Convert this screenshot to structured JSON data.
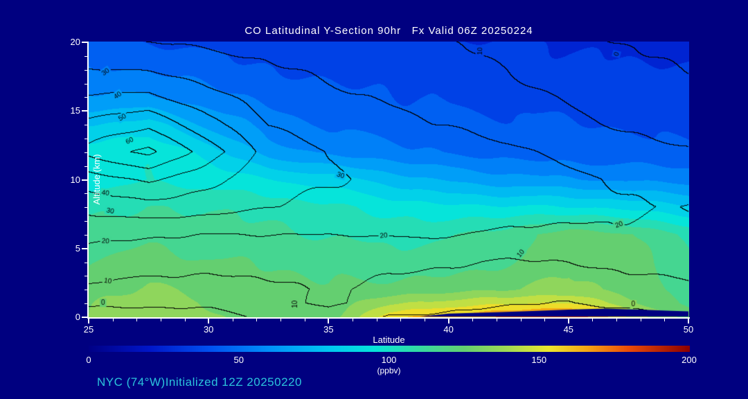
{
  "annotation": {
    "text": "NYC (74°W)Initialized 12Z 20250220"
  },
  "colors": {
    "background": "#000080",
    "axis": "#ffffff",
    "title_text": "#ffffff",
    "annotation_text": "#2bc4dc",
    "contour_line": "#000000"
  },
  "chart_data": {
    "type": "heatmap",
    "title": "CO Latitudinal Y-Section 90hr   Fx Valid 06Z 20250224",
    "xlabel": "Latitude",
    "ylabel": "Altitude (km)",
    "x_range": [
      25,
      50
    ],
    "y_range": [
      0,
      20
    ],
    "x_ticks": [
      25,
      30,
      35,
      40,
      45,
      50
    ],
    "y_ticks": [
      0,
      5,
      10,
      15,
      20
    ],
    "x_minor_step": 1,
    "y_minor_step": 1,
    "colorbar": {
      "min": 0,
      "max": 200,
      "ticks": [
        0,
        50,
        100,
        150,
        200
      ],
      "label": "(ppbv)"
    },
    "fill_step": 10,
    "colormap": [
      {
        "v": 0.0,
        "c": "#000086"
      },
      {
        "v": 0.1,
        "c": "#0016c8"
      },
      {
        "v": 0.2,
        "c": "#0050f0"
      },
      {
        "v": 0.3,
        "c": "#0090fa"
      },
      {
        "v": 0.4,
        "c": "#00c8f0"
      },
      {
        "v": 0.475,
        "c": "#06e4da"
      },
      {
        "v": 0.55,
        "c": "#35d9a2"
      },
      {
        "v": 0.625,
        "c": "#64cf70"
      },
      {
        "v": 0.7,
        "c": "#a4da52"
      },
      {
        "v": 0.765,
        "c": "#ece72e"
      },
      {
        "v": 0.83,
        "c": "#f5a514"
      },
      {
        "v": 0.9,
        "c": "#ea4a08"
      },
      {
        "v": 1.0,
        "c": "#8c0000"
      }
    ],
    "grid_lats": [
      25,
      27.5,
      30,
      32.5,
      35,
      37.5,
      40,
      42.5,
      45,
      47.5,
      50
    ],
    "grid_alts": [
      20,
      18,
      16,
      14,
      12,
      10,
      8,
      6,
      4,
      2,
      1,
      0
    ],
    "fill_values_ppbv": [
      [
        42,
        40,
        37,
        35,
        33,
        32,
        31,
        30,
        30,
        28,
        26
      ],
      [
        50,
        48,
        45,
        41,
        38,
        36,
        35,
        34,
        33,
        32,
        30
      ],
      [
        62,
        60,
        54,
        47,
        43,
        40,
        38,
        38,
        37,
        35,
        33
      ],
      [
        80,
        84,
        68,
        55,
        48,
        45,
        43,
        42,
        40,
        38,
        36
      ],
      [
        94,
        98,
        86,
        66,
        57,
        52,
        48,
        46,
        45,
        43,
        41
      ],
      [
        95,
        99,
        96,
        90,
        85,
        76,
        68,
        64,
        61,
        58,
        55
      ],
      [
        108,
        111,
        109,
        105,
        101,
        97,
        93,
        91,
        89,
        87,
        82
      ],
      [
        115,
        116,
        114,
        112,
        110,
        108,
        108,
        114,
        126,
        122,
        108
      ],
      [
        121,
        124,
        121,
        118,
        116,
        114,
        115,
        119,
        128,
        123,
        112
      ],
      [
        126,
        133,
        128,
        123,
        121,
        124,
        127,
        129,
        132,
        126,
        116
      ],
      [
        128,
        136,
        130,
        125,
        123,
        138,
        145,
        148,
        150,
        133,
        118
      ],
      [
        129,
        134,
        131,
        127,
        125,
        155,
        165,
        170,
        180,
        148,
        126
      ]
    ],
    "contour_levels": [
      0,
      10,
      20,
      30,
      40,
      50,
      60,
      70
    ],
    "contour_values": [
      [
        22,
        20,
        18,
        16,
        14,
        12,
        10,
        6,
        2,
        -1,
        -3
      ],
      [
        30,
        29,
        25,
        21,
        18,
        16,
        14,
        10,
        5,
        2,
        0
      ],
      [
        41,
        42,
        33,
        26,
        22,
        19,
        17,
        13,
        9,
        5,
        3
      ],
      [
        53,
        58,
        43,
        30,
        25,
        22,
        20,
        16,
        12,
        9,
        7
      ],
      [
        63,
        73,
        55,
        36,
        30,
        28,
        26,
        22,
        17,
        13,
        11
      ],
      [
        46,
        52,
        43,
        33,
        31,
        29,
        28,
        26,
        22,
        19,
        17
      ],
      [
        33,
        37,
        34,
        30,
        28,
        27,
        26,
        25,
        23,
        21,
        20
      ],
      [
        22,
        21,
        20,
        20,
        20,
        21,
        21,
        18,
        18,
        19,
        19
      ],
      [
        15,
        14,
        13,
        13,
        13,
        12,
        11,
        9.5,
        10,
        13,
        14
      ],
      [
        8,
        7,
        6,
        8,
        11,
        7,
        6,
        4,
        3,
        6,
        8
      ],
      [
        1,
        2,
        2,
        6,
        12,
        5,
        3,
        1,
        0,
        2,
        4
      ],
      [
        -4,
        -4,
        -3,
        1,
        6,
        0,
        -2,
        -4,
        -5,
        -3,
        -1
      ]
    ],
    "contour_labels": [
      {
        "lat": 25.7,
        "alt": 17.8,
        "text": "30",
        "rot": -35
      },
      {
        "lat": 26.2,
        "alt": 16.1,
        "text": "40",
        "rot": -35
      },
      {
        "lat": 26.4,
        "alt": 14.5,
        "text": "50",
        "rot": -30
      },
      {
        "lat": 26.7,
        "alt": 12.8,
        "text": "60",
        "rot": -25
      },
      {
        "lat": 35.5,
        "alt": 10.3,
        "text": "30",
        "rot": 18
      },
      {
        "lat": 25.7,
        "alt": 9.0,
        "text": "40",
        "rot": 8
      },
      {
        "lat": 25.9,
        "alt": 7.7,
        "text": "30",
        "rot": 12
      },
      {
        "lat": 25.7,
        "alt": 5.5,
        "text": "20",
        "rot": 5
      },
      {
        "lat": 25.8,
        "alt": 2.6,
        "text": "10",
        "rot": 8
      },
      {
        "lat": 25.6,
        "alt": 1.0,
        "text": "0",
        "rot": 0
      },
      {
        "lat": 37.3,
        "alt": 5.9,
        "text": "20",
        "rot": -5
      },
      {
        "lat": 43.0,
        "alt": 4.6,
        "text": "10",
        "rot": -50
      },
      {
        "lat": 47.1,
        "alt": 6.7,
        "text": "20",
        "rot": -20
      },
      {
        "lat": 33.6,
        "alt": 0.9,
        "text": "10",
        "rot": -90
      },
      {
        "lat": 47.7,
        "alt": 0.9,
        "text": "0",
        "rot": 0
      },
      {
        "lat": 41.3,
        "alt": 19.3,
        "text": "10",
        "rot": -88
      },
      {
        "lat": 47.0,
        "alt": 19.1,
        "text": "0",
        "rot": -75
      }
    ],
    "terrain_mask": [
      [
        38.8,
        0
      ],
      [
        40,
        0.22
      ],
      [
        42,
        0.32
      ],
      [
        43.5,
        0.4
      ],
      [
        45,
        0.5
      ],
      [
        46.5,
        0.58
      ],
      [
        48,
        0.5
      ],
      [
        49.3,
        0.42
      ],
      [
        50,
        0.38
      ],
      [
        50,
        0
      ]
    ]
  }
}
